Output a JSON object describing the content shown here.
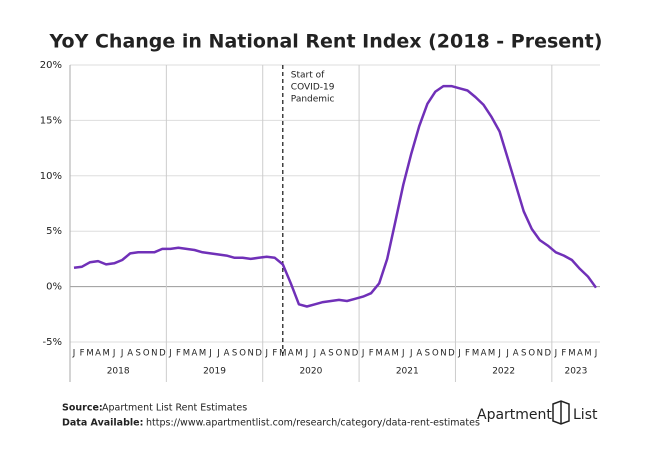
{
  "chart_data": {
    "type": "line",
    "title": "YoY Change in National Rent Index (2018 - Present)",
    "categories": [
      "J",
      "F",
      "M",
      "A",
      "M",
      "J",
      "J",
      "A",
      "S",
      "O",
      "N",
      "D",
      "J",
      "F",
      "M",
      "A",
      "M",
      "J",
      "J",
      "A",
      "S",
      "O",
      "N",
      "D",
      "J",
      "F",
      "M",
      "A",
      "M",
      "J",
      "J",
      "A",
      "S",
      "O",
      "N",
      "D",
      "J",
      "F",
      "M",
      "A",
      "M",
      "J",
      "J",
      "A",
      "S",
      "O",
      "N",
      "D",
      "J",
      "F",
      "M",
      "A",
      "M",
      "J",
      "J",
      "A",
      "S",
      "O",
      "N",
      "D",
      "J",
      "F",
      "M",
      "A",
      "M",
      "J"
    ],
    "years": [
      "2018",
      "2019",
      "2020",
      "2021",
      "2022",
      "2023"
    ],
    "series": [
      {
        "name": "YoY Change",
        "color": "#7030b8",
        "values": [
          1.7,
          1.8,
          2.2,
          2.3,
          2.0,
          2.1,
          2.4,
          3.0,
          3.1,
          3.1,
          3.1,
          3.4,
          3.4,
          3.5,
          3.4,
          3.3,
          3.1,
          3.0,
          2.9,
          2.8,
          2.6,
          2.6,
          2.5,
          2.6,
          2.7,
          2.6,
          2.0,
          0.3,
          -1.6,
          -1.8,
          -1.6,
          -1.4,
          -1.3,
          -1.2,
          -1.3,
          -1.1,
          -0.9,
          -0.6,
          0.3,
          2.5,
          5.8,
          9.2,
          12.0,
          14.5,
          16.5,
          17.6,
          18.1,
          18.1,
          17.9,
          17.7,
          17.1,
          16.4,
          15.3,
          14.0,
          11.6,
          9.2,
          6.8,
          5.2,
          4.2,
          3.7,
          3.1,
          2.8,
          2.4,
          1.6,
          0.9,
          -0.1
        ]
      }
    ],
    "ylim": [
      -5,
      20
    ],
    "yticks": [
      {
        "value": -5,
        "label": "-5%"
      },
      {
        "value": 0,
        "label": "0%"
      },
      {
        "value": 5,
        "label": "5%"
      },
      {
        "value": 10,
        "label": "10%"
      },
      {
        "value": 15,
        "label": "15%"
      },
      {
        "value": 20,
        "label": "20%"
      }
    ],
    "grid": true,
    "annotation": {
      "lines": [
        "Start of",
        "COVID-19",
        "Pandemic"
      ],
      "at": 26
    }
  },
  "footer": {
    "source_label": "Source:",
    "source_text": "Apartment List Rent Estimates",
    "available_label": "Data Available:",
    "available_text": "https://www.apartmentlist.com/research/category/data-rent-estimates",
    "logo_word1": "Apartment",
    "logo_word2": "List"
  }
}
